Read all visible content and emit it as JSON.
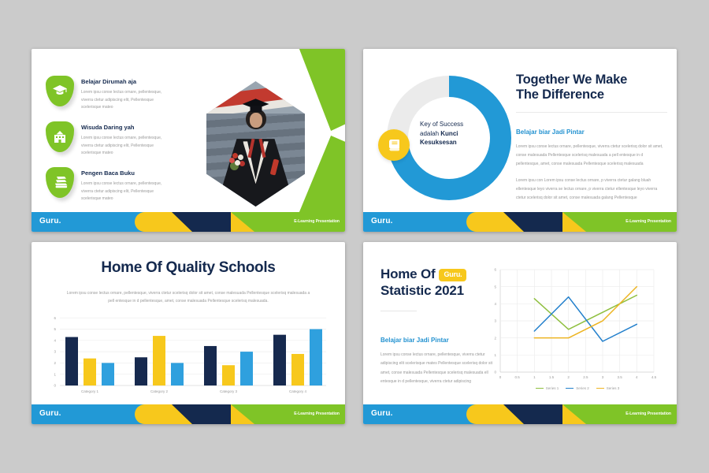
{
  "colors": {
    "bg": "#cbcbcb",
    "blue": "#2299d6",
    "navy": "#14294e",
    "green": "#7fc427",
    "yellow": "#f7c81c",
    "bluetext": "#2191d0",
    "ring_track": "#ebebeb"
  },
  "footer": {
    "brand": "Guru.",
    "tagline": "E-Learning Presentation"
  },
  "slides": {
    "s1": {
      "items": [
        {
          "icon": "graduation-cap-icon",
          "title": "Belajar Dirumah aja",
          "body": "Lorem ipsu conse lectus ornare, pellentesque, viverra ctetur adipiscing elit, Pellentesque scelerisque mateo"
        },
        {
          "icon": "school-building-icon",
          "title": "Wisuda Daring yah",
          "body": "Lorem ipsu conse lectus ornare, pellentesque, viverra ctetur adipiscing elit, Pellentesque scelerisque mateo"
        },
        {
          "icon": "books-icon",
          "title": "Pengen Baca Buku",
          "body": "Lorem ipsu conse lectus ornare, pellentesque, viverra ctetur adipiscing elit, Pellentesque scelerisque mateo"
        }
      ]
    },
    "s2": {
      "ring": {
        "line1": "Key of Success",
        "line2_regular": "adalah",
        "line2_bold": "Kunci",
        "line3_bold": "Kesuksesan",
        "sweep_deg": 258
      },
      "title_line1": "Together We Make",
      "title_line2": "The Difference",
      "subtitle": "Belajar biar Jadi Pintar",
      "para1": "Lorem ipsu conse lectus ornare, pellentesque, viverra ctetur scelerisq dolor sit amet, conse malesuada Pellentesque scelerisq malesuada a pell entesque in d pellentesque, amet, conse malesuada Pellentesque scelerisq malesuada",
      "para2": "Lorem ipsu con Lorem ipsu conse lectus ornare, p viverra ctetur galang bluah ellentesque leyo viverra se lectus ornare, p viverra ctetur ellentesque leyo viverra ctetur scelerisq dolor sit amet, conse malesuada galang Pellentesque"
    },
    "s3": {
      "title": "Home Of Quality Schools",
      "subtitle": "Lorem ipsu conse lectus ornare, pellentesque, viverra ctetur scelerisq dolor sit amet, conse malesuada Pellentesque scelerisq malesuada a pell entesque in d pellentesque, amet, conse malesuada Pellentesque scelerisq malesuada."
    },
    "s4": {
      "title_line1": "Home Of",
      "badge": "Guru.",
      "title_line2": "Statistic 2021",
      "subtitle": "Belajar biar Jadi Pintar",
      "para": "Lorem ipsu conse lectus ornare, pellentesque, viverra ctetur adipiscing elit scelerisque mates Pellentesque scelerisq dolor sit amet, conse malesuada Pellentesque scelerisq malesuada ell entesque in d pellentesque, viverra ctetur adipiscing"
    }
  },
  "chart_data": [
    {
      "type": "bar",
      "title": "Home Of Quality Schools",
      "categories": [
        "Category 1",
        "Category 2",
        "Category 3",
        "Category 4"
      ],
      "series": [
        {
          "name": "Series 1",
          "color": "#16294e",
          "values": [
            4.3,
            2.5,
            3.5,
            4.5
          ]
        },
        {
          "name": "Series 2",
          "color": "#f7c81c",
          "values": [
            2.4,
            4.4,
            1.8,
            2.8
          ]
        },
        {
          "name": "Series 3",
          "color": "#2fa0de",
          "values": [
            2,
            2,
            3,
            5
          ]
        }
      ],
      "xlabel": "",
      "ylabel": "",
      "ylim": [
        0,
        6
      ],
      "ytick_step": 1,
      "grid": true,
      "legend": "none"
    },
    {
      "type": "line",
      "title": "Home Of Statistic 2021",
      "x": [
        1,
        2,
        3,
        4
      ],
      "series": [
        {
          "name": "Series 1",
          "color": "#8fbf3f",
          "values": [
            4.3,
            2.5,
            3.5,
            4.5
          ]
        },
        {
          "name": "Series 2",
          "color": "#2380cc",
          "values": [
            2.4,
            4.4,
            1.8,
            2.8
          ]
        },
        {
          "name": "Series 3",
          "color": "#edb422",
          "values": [
            2,
            2,
            3,
            5
          ]
        }
      ],
      "xlabel": "",
      "ylabel": "",
      "xlim": [
        0,
        4.5
      ],
      "xtick_step": 0.5,
      "ylim": [
        0,
        6
      ],
      "ytick_step": 1,
      "grid": true,
      "legend": "bottom"
    }
  ]
}
